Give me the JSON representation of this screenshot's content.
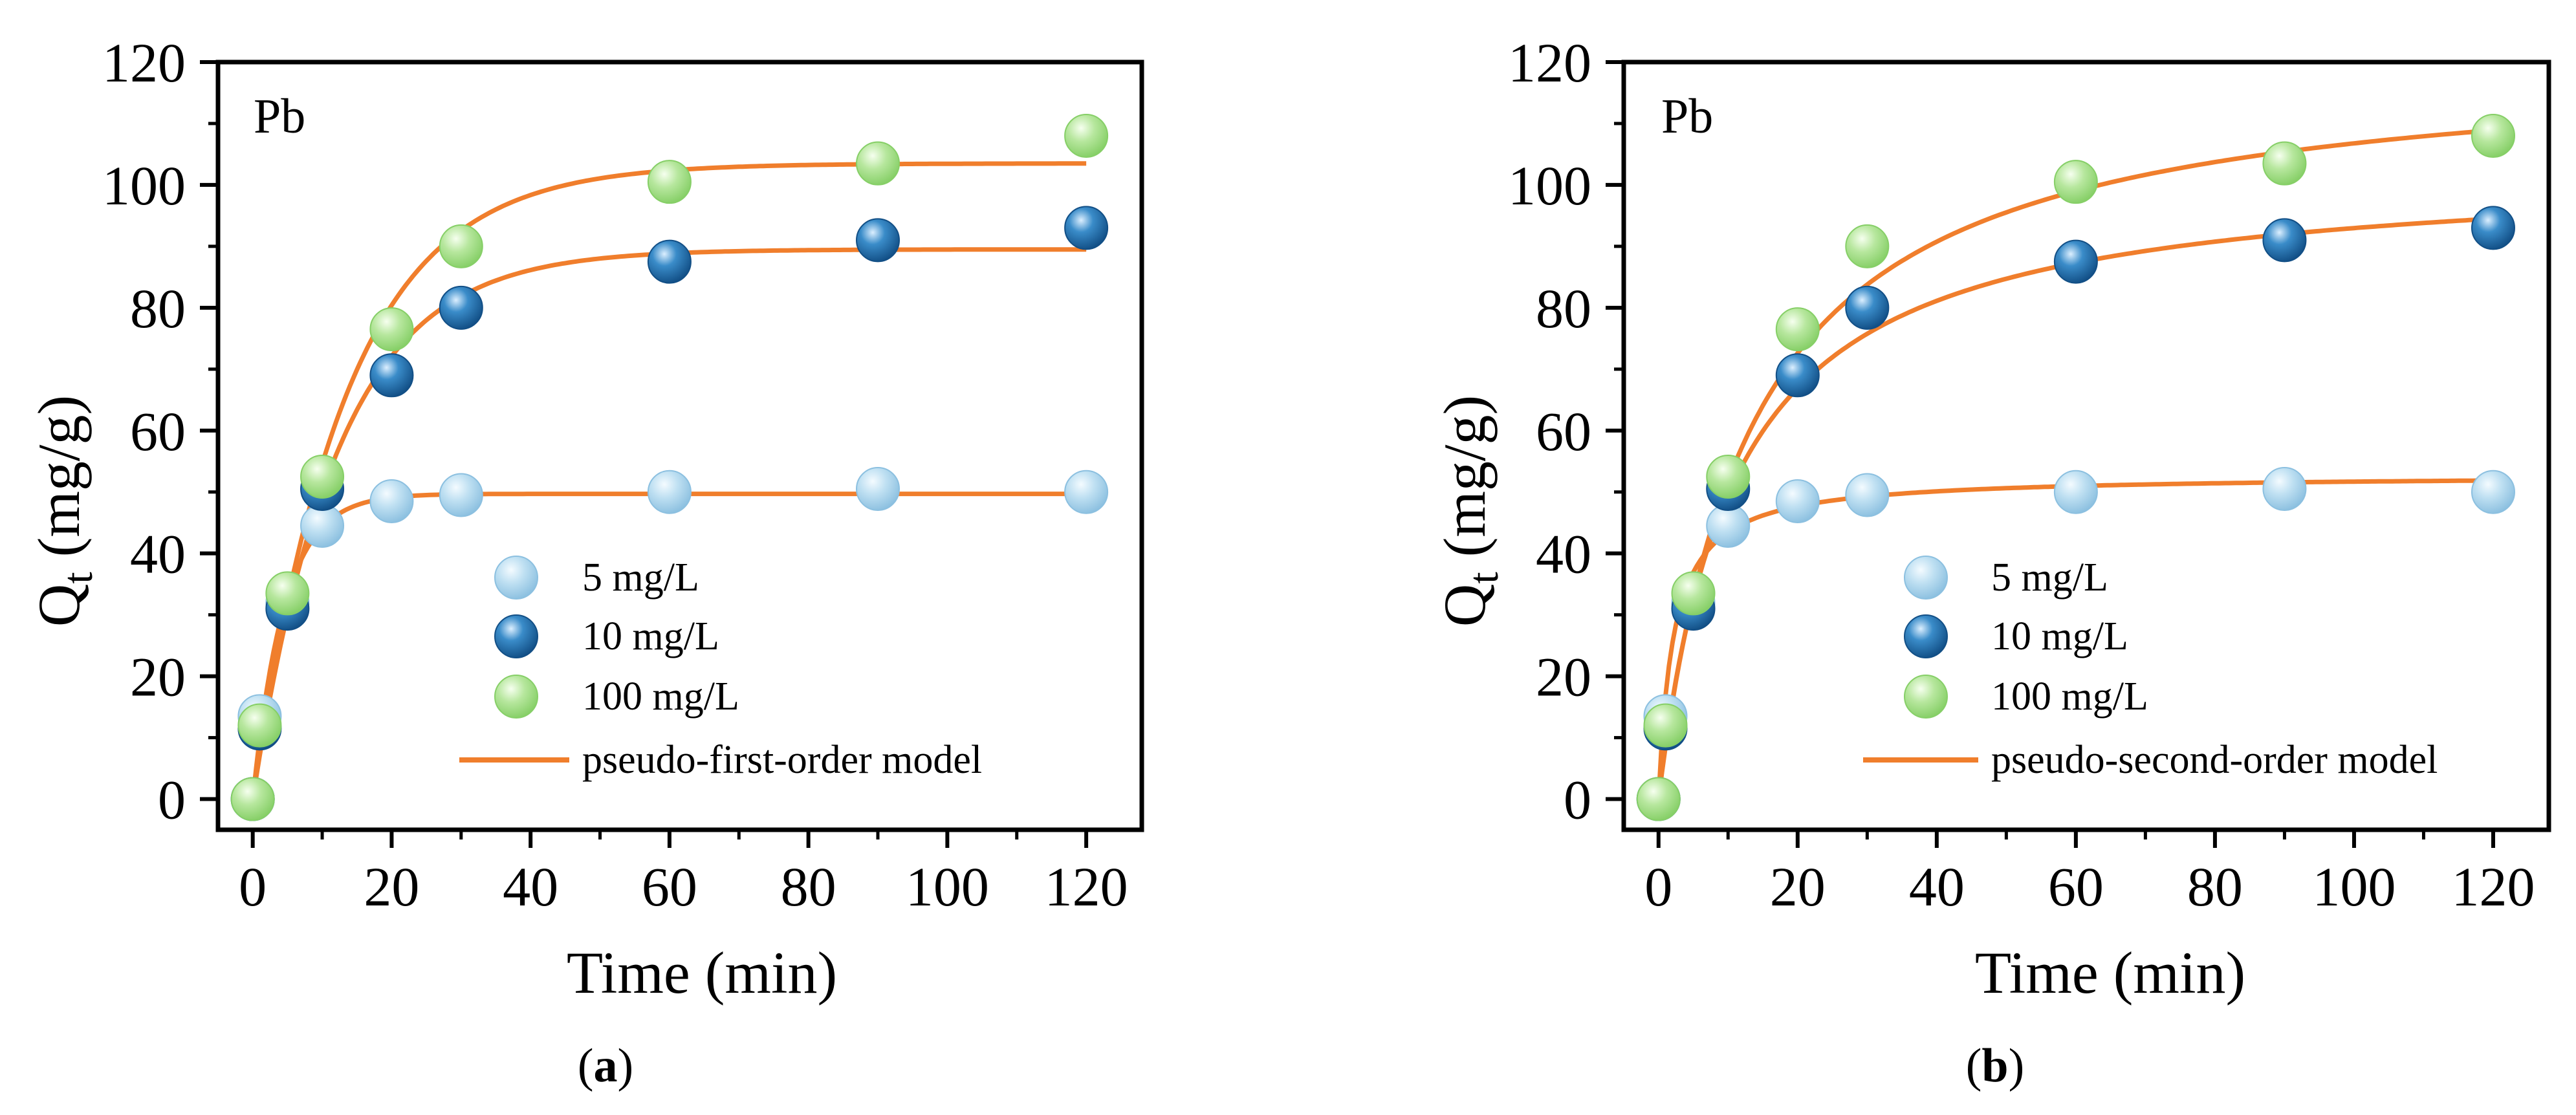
{
  "colors": {
    "series_5": "#a9d1ea",
    "series_10": "#2378b5",
    "series_100": "#a8e08a",
    "model_line": "#f07e2c"
  },
  "chart_data": [
    {
      "type": "scatter",
      "panel_label": "Pb",
      "caption_open": "(",
      "caption_letter": "a",
      "caption_close": ")",
      "xlabel": "Time (min)",
      "ylabel_main": "Q",
      "ylabel_sub": "t",
      "ylabel_unit": " (mg/g)",
      "xlim": [
        -5,
        128
      ],
      "ylim": [
        -5,
        120
      ],
      "xticks": [
        0,
        20,
        40,
        60,
        80,
        100,
        120
      ],
      "yticks": [
        0,
        20,
        40,
        60,
        80,
        100,
        120
      ],
      "series": [
        {
          "name": "5 mg/L",
          "x": [
            0,
            1,
            5,
            10,
            20,
            30,
            60,
            90,
            120
          ],
          "y": [
            0,
            13.5,
            32,
            44.5,
            48.5,
            49.5,
            50,
            50.5,
            50
          ]
        },
        {
          "name": "10 mg/L",
          "x": [
            0,
            1,
            5,
            10,
            20,
            30,
            60,
            90,
            120
          ],
          "y": [
            0,
            11.5,
            31,
            50.5,
            69,
            80,
            87.5,
            91,
            93
          ]
        },
        {
          "name": "100 mg/L",
          "x": [
            0,
            1,
            5,
            10,
            20,
            30,
            60,
            90,
            120
          ],
          "y": [
            0,
            12,
            33.5,
            52.5,
            76.5,
            90,
            100.5,
            103.5,
            108
          ]
        }
      ],
      "model": {
        "name": "pseudo-first-order model",
        "kind": "pfo",
        "curves": [
          {
            "for": "5 mg/L",
            "qe": 49.7,
            "k": 0.22
          },
          {
            "for": "10 mg/L",
            "qe": 89.5,
            "k": 0.082
          },
          {
            "for": "100 mg/L",
            "qe": 103.5,
            "k": 0.075
          }
        ]
      }
    },
    {
      "type": "scatter",
      "panel_label": "Pb",
      "caption_open": "(",
      "caption_letter": "b",
      "caption_close": ")",
      "xlabel": "Time (min)",
      "ylabel_main": "Q",
      "ylabel_sub": "t",
      "ylabel_unit": " (mg/g)",
      "xlim": [
        -5,
        128
      ],
      "ylim": [
        -5,
        120
      ],
      "xticks": [
        0,
        20,
        40,
        60,
        80,
        100,
        120
      ],
      "yticks": [
        0,
        20,
        40,
        60,
        80,
        100,
        120
      ],
      "series": [
        {
          "name": "5 mg/L",
          "x": [
            0,
            1,
            5,
            10,
            20,
            30,
            60,
            90,
            120
          ],
          "y": [
            0,
            13.5,
            32,
            44.5,
            48.5,
            49.5,
            50,
            50.5,
            50
          ]
        },
        {
          "name": "10 mg/L",
          "x": [
            0,
            1,
            5,
            10,
            20,
            30,
            60,
            90,
            120
          ],
          "y": [
            0,
            11.5,
            31,
            50.5,
            69,
            80,
            87.5,
            91,
            93
          ]
        },
        {
          "name": "100 mg/L",
          "x": [
            0,
            1,
            5,
            10,
            20,
            30,
            60,
            90,
            120
          ],
          "y": [
            0,
            12,
            33.5,
            52.5,
            76.5,
            90,
            100.5,
            103.5,
            108
          ]
        }
      ],
      "model": {
        "name": "pseudo-second-order model",
        "kind": "pso",
        "curves": [
          {
            "for": "5 mg/L",
            "qe": 52.8,
            "k": 0.0088
          },
          {
            "for": "10 mg/L",
            "qe": 103.0,
            "k": 0.0009
          },
          {
            "for": "100 mg/L",
            "qe": 121.0,
            "k": 0.00062
          }
        ]
      }
    }
  ]
}
